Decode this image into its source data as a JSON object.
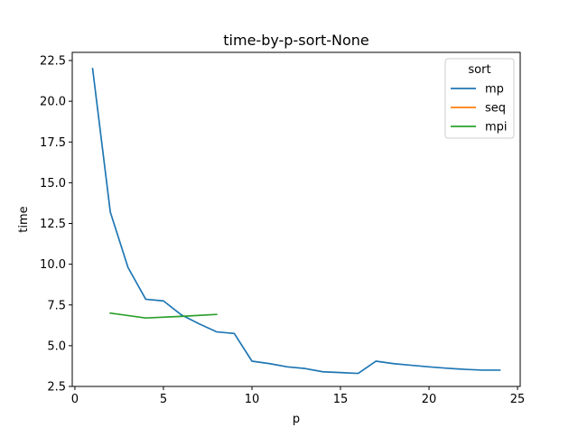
{
  "chart_data": {
    "type": "line",
    "title": "time-by-p-sort-None",
    "xlabel": "p",
    "ylabel": "time",
    "xlim": [
      -0.15,
      25.15
    ],
    "ylim": [
      2.5,
      23.0
    ],
    "x_ticks": [
      0,
      5,
      10,
      15,
      20,
      25
    ],
    "y_ticks": [
      2.5,
      5.0,
      7.5,
      10.0,
      12.5,
      15.0,
      17.5,
      20.0,
      22.5
    ],
    "x_tick_labels": [
      "0",
      "5",
      "10",
      "15",
      "20",
      "25"
    ],
    "y_tick_labels": [
      "2.5",
      "5.0",
      "7.5",
      "10.0",
      "12.5",
      "15.0",
      "17.5",
      "20.0",
      "22.5"
    ],
    "grid": false,
    "legend": {
      "title": "sort",
      "position": "top-right"
    },
    "series": [
      {
        "name": "mp",
        "color": "#1f77b4",
        "x": [
          1,
          2,
          3,
          4,
          5,
          6,
          7,
          8,
          9,
          10,
          11,
          12,
          13,
          14,
          15,
          16,
          17,
          18,
          19,
          20,
          21,
          22,
          23,
          24
        ],
        "y": [
          22.0,
          13.2,
          9.8,
          7.85,
          7.75,
          6.9,
          6.35,
          5.85,
          5.75,
          4.05,
          3.9,
          3.7,
          3.6,
          3.4,
          3.35,
          3.3,
          4.05,
          3.9,
          3.8,
          3.7,
          3.62,
          3.55,
          3.5,
          3.5
        ]
      },
      {
        "name": "seq",
        "color": "#ff7f0e",
        "x": [],
        "y": []
      },
      {
        "name": "mpi",
        "color": "#2ca02c",
        "x": [
          2,
          4,
          6,
          8
        ],
        "y": [
          7.0,
          6.7,
          6.8,
          6.92
        ]
      }
    ]
  }
}
